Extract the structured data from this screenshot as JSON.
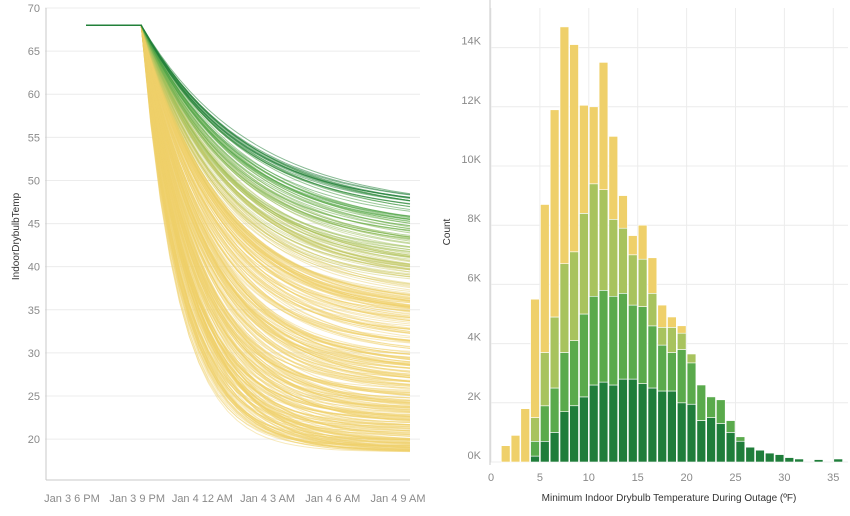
{
  "palette": {
    "yellow": "#efd06a",
    "light_green": "#a8c35e",
    "mid_green": "#5aaa4c",
    "dark_green": "#1f7d3a",
    "grid": "#ececec",
    "axis": "#c8c8c8",
    "tick_text": "#8a8a8a"
  },
  "chart_data": [
    {
      "type": "line",
      "ylabel": "IndoorDrybulbTemp",
      "xlabel": "",
      "x_ticks": [
        "Jan 3 6 PM",
        "Jan 3 9 PM",
        "Jan 4 12 AM",
        "Jan 4 3 AM",
        "Jan 4 6 AM",
        "Jan 4 9 AM"
      ],
      "y_ticks": [
        20,
        25,
        30,
        35,
        40,
        45,
        50,
        55,
        60,
        65,
        70
      ],
      "ylim": [
        17,
        70
      ],
      "grid": true,
      "series_summary": {
        "initial_setpoint": 68,
        "setpoint_until": "Jan 3 8 PM",
        "outage_start": "Jan 3 8 PM",
        "end_time": "Jan 4 9 AM",
        "final_temp_min": 18.5,
        "final_temp_max": 47,
        "color_encoding": "final temperature, yellow (coldest) to green (warmest)"
      }
    },
    {
      "type": "bar",
      "subtype": "stacked-histogram",
      "xlabel": "Minimum Indoor Drybulb Temperature During Outage (ºF)",
      "ylabel": "Count",
      "x_ticks": [
        0,
        5,
        10,
        15,
        20,
        25,
        30,
        35
      ],
      "y_ticks": [
        "0K",
        "2K",
        "4K",
        "6K",
        "8K",
        "10K",
        "12K",
        "14K"
      ],
      "ylim": [
        0,
        15000
      ],
      "bin_width": 1,
      "bin_starts": [
        1,
        2,
        3,
        4,
        5,
        6,
        7,
        8,
        9,
        10,
        11,
        12,
        13,
        14,
        15,
        16,
        17,
        18,
        19,
        20,
        21,
        22,
        23,
        24,
        25,
        26,
        27,
        28,
        29,
        30,
        31,
        32,
        33,
        34,
        35
      ],
      "series": [
        {
          "values": [
            0,
            0,
            0,
            200,
            700,
            1000,
            1700,
            1900,
            2200,
            2600,
            2700,
            2600,
            2800,
            2800,
            2650,
            2500,
            2400,
            2400,
            2000,
            1950,
            1400,
            1500,
            1300,
            1000,
            700,
            500,
            400,
            300,
            250,
            150,
            100,
            0,
            80,
            0,
            100
          ]
        },
        {
          "values": [
            0,
            0,
            0,
            500,
            1200,
            1500,
            2000,
            2200,
            2800,
            3000,
            3100,
            3000,
            2900,
            2500,
            2600,
            2100,
            1550,
            1300,
            1800,
            1400,
            1200,
            700,
            800,
            400,
            150,
            0,
            0,
            0,
            0,
            0,
            0,
            0,
            0,
            0,
            0
          ]
        },
        {
          "values": [
            0,
            0,
            0,
            800,
            1800,
            2400,
            3000,
            3000,
            3400,
            3800,
            3400,
            2600,
            2200,
            1700,
            1600,
            1100,
            600,
            850,
            550,
            300,
            0,
            0,
            0,
            0,
            0,
            0,
            0,
            0,
            0,
            0,
            0,
            0,
            0,
            0,
            0
          ]
        },
        {
          "values": [
            550,
            900,
            1800,
            4000,
            5000,
            7000,
            8000,
            7000,
            3650,
            2600,
            4300,
            2800,
            1100,
            650,
            1150,
            1200,
            750,
            350,
            250,
            0,
            0,
            0,
            0,
            0,
            0,
            0,
            0,
            0,
            0,
            0,
            0,
            0,
            0,
            0,
            0
          ]
        }
      ]
    }
  ]
}
